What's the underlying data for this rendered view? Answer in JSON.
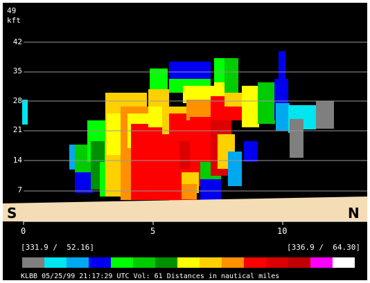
{
  "y_axis": {
    "unit": "kft",
    "top_label": "49",
    "ticks": [
      "42",
      "35",
      "28",
      "21",
      "14",
      "7"
    ]
  },
  "x_axis": {
    "ticks": [
      "0",
      "5",
      "10"
    ]
  },
  "left_direction": "S",
  "right_direction": "N",
  "left_coord": "[331.9 /  52.16]",
  "right_coord": "[336.9 /  64.30]",
  "status_line": "KLBB 05/25/99 21:17:29 UTC Vol: 61 Distances in nautical miles",
  "colors": {
    "background": "#000000",
    "ground": "#f4dcb4",
    "grid": "#9a9a9a"
  },
  "legend_colors": [
    "#7f7f7f",
    "#00e5ef",
    "#00a8f0",
    "#0000f0",
    "#00ff00",
    "#00cc00",
    "#009000",
    "#ffff00",
    "#ffd000",
    "#ff9000",
    "#ff0000",
    "#dd0000",
    "#c00000",
    "#ff00ff",
    "#ffffff"
  ]
}
